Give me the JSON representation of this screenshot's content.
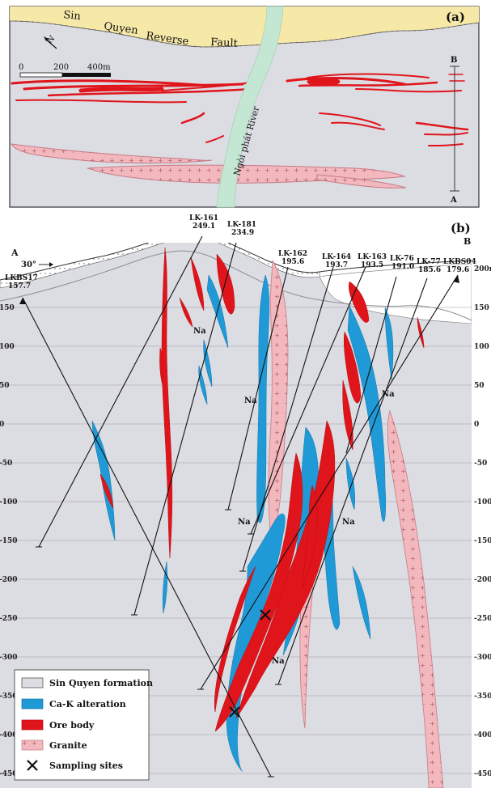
{
  "panel_a": {
    "label": "(a)",
    "fault_words": [
      "Sin",
      "Quyen",
      "Reverse",
      "Fault"
    ],
    "river_label": "Ngòi phát River",
    "north_label": "N",
    "scale_labels": [
      "0",
      "200",
      "400m"
    ],
    "section_end_top": "B",
    "section_end_bottom": "A"
  },
  "panel_b": {
    "label": "(b)",
    "end_a": "A",
    "end_b": "B",
    "dip_label": "30°",
    "drillholes": [
      {
        "name": "LK-161",
        "elev": "249.1"
      },
      {
        "name": "LK-181",
        "elev": "234.9"
      },
      {
        "name": "LK-162",
        "elev": "195.6"
      },
      {
        "name": "LK-164",
        "elev": "193.7"
      },
      {
        "name": "LK-163",
        "elev": "193.5"
      },
      {
        "name": "LK-76",
        "elev": "191.0"
      },
      {
        "name": "LK-77",
        "elev": "185.6"
      },
      {
        "name": "LKBS04",
        "elev": "179.6"
      },
      {
        "name": "LKBS17",
        "elev": "157.7"
      }
    ],
    "right_ticks": [
      "200m",
      "150",
      "100",
      "50",
      "0",
      "-50",
      "-100",
      "-150",
      "-200",
      "-250",
      "-300",
      "-350",
      "-400",
      "-450"
    ],
    "left_ticks": [
      "150",
      "100",
      "50",
      "0",
      "-50",
      "-100",
      "-150",
      "-200",
      "-250",
      "-300",
      "-350",
      "-400",
      "-450"
    ],
    "na_label": "Na"
  },
  "legend": {
    "items": [
      {
        "label": "Sin Quyen formation",
        "color": "#dcdde3"
      },
      {
        "label": "Ca-K alteration",
        "color": "#1f9ad6"
      },
      {
        "label": "Ore body",
        "color": "#e0141b"
      },
      {
        "label": "Granite",
        "color": "#f2b8bd"
      },
      {
        "label": "Sampling sites",
        "color": "#111111"
      }
    ]
  },
  "colors": {
    "fault_zone": "#f6e9a8",
    "background": "#dcdde3",
    "river": "#c4e7d3",
    "ore": "#e0141b",
    "alteration": "#1f9ad6",
    "granite": "#f2b8bd"
  }
}
